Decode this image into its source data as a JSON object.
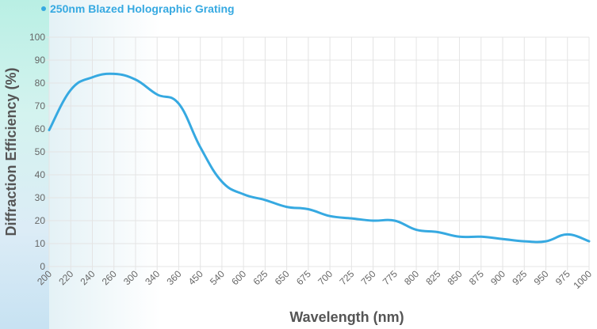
{
  "colors": {
    "series": "#36a9e1",
    "grid": "#e4e4e4",
    "axis_text": "#666666",
    "axis_title": "#555555"
  },
  "chart_data": {
    "type": "line",
    "series": [
      {
        "name": "250nm Blazed Holographic Grating",
        "values": [
          59.5,
          77,
          82.5,
          84,
          81.5,
          75,
          71,
          52,
          37,
          31.5,
          29,
          26,
          25,
          22,
          21,
          20,
          20,
          16,
          15,
          13,
          13,
          12,
          11,
          11,
          14,
          11
        ]
      }
    ],
    "categories": [
      "200",
      "220",
      "240",
      "260",
      "300",
      "340",
      "360",
      "450",
      "540",
      "600",
      "625",
      "650",
      "675",
      "700",
      "725",
      "750",
      "775",
      "800",
      "825",
      "850",
      "875",
      "900",
      "925",
      "950",
      "975",
      "1000"
    ],
    "y_ticks": [
      "0",
      "10",
      "20",
      "30",
      "40",
      "50",
      "60",
      "70",
      "80",
      "90",
      "100"
    ],
    "ylim": [
      0,
      100
    ],
    "xlabel": "Wavelength (nm)",
    "ylabel": "Diffraction Efficiency (%)",
    "legend": "top-left",
    "grid": true
  }
}
